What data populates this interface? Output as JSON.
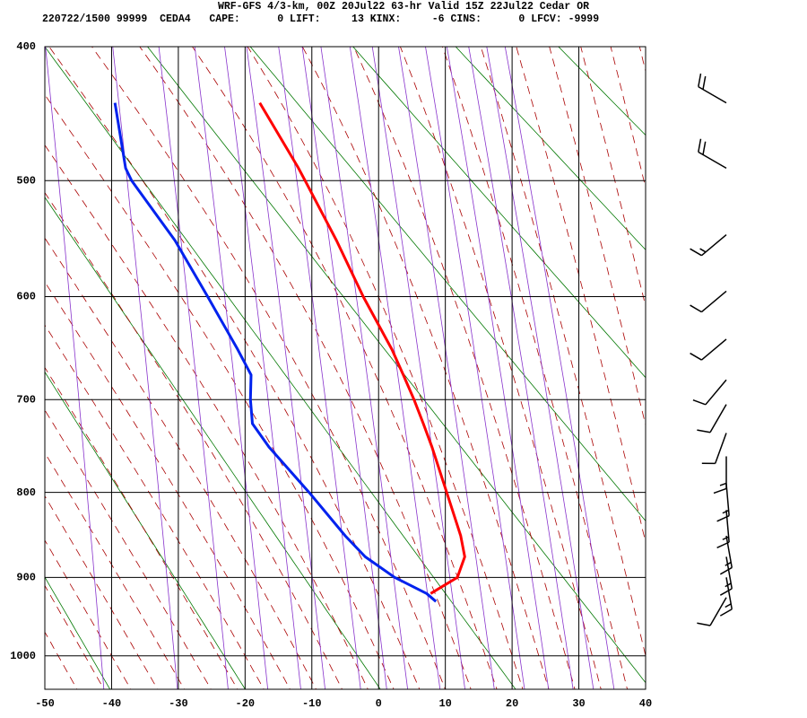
{
  "header": {
    "title": "WRF-GFS 4/3-km, 00Z 20Jul22 63-hr Valid 15Z 22Jul22 Cedar OR",
    "station_line": "220722/1500 99999  CEDA4   CAPE:      0 LIFT:     13 KINX:     -6 CINS:      0 LFCV: -9999"
  },
  "chart_data": {
    "type": "sounding",
    "levels": [
      440,
      490,
      500,
      550,
      600,
      650,
      675,
      700,
      725,
      750,
      800,
      850,
      875,
      900,
      920,
      930
    ],
    "series": [
      {
        "color": "#ff0000",
        "values": [
          -17.8,
          -12.0,
          -11.0,
          -6.3,
          -2.3,
          2.0,
          3.7,
          5.3,
          6.7,
          8.0,
          10.2,
          12.3,
          12.9,
          11.8,
          7.8,
          null
        ]
      },
      {
        "color": "#0022ee",
        "values": [
          -39.5,
          -37.9,
          -37.0,
          -30.5,
          -25.6,
          -21.1,
          -19.1,
          -19.2,
          -18.9,
          -16.4,
          -10.4,
          -5.0,
          -2.0,
          2.4,
          7.2,
          8.6
        ]
      }
    ],
    "xlim": [
      -50,
      40
    ],
    "xticks": [
      -50,
      -40,
      -30,
      -20,
      -10,
      0,
      10,
      20,
      30,
      40
    ],
    "ylim": [
      400,
      1045
    ],
    "yticks": [
      400,
      500,
      600,
      700,
      800,
      900,
      1000
    ],
    "grid": true,
    "wind": {
      "pressure": [
        440,
        490,
        545,
        595,
        640,
        680,
        705,
        735,
        760,
        790,
        820,
        850,
        875,
        900,
        925
      ],
      "direction": [
        300,
        300,
        230,
        230,
        230,
        220,
        210,
        200,
        180,
        175,
        175,
        170,
        170,
        170,
        210
      ],
      "speed": [
        20,
        20,
        15,
        10,
        10,
        10,
        10,
        10,
        15,
        15,
        15,
        15,
        15,
        15,
        10
      ]
    }
  }
}
